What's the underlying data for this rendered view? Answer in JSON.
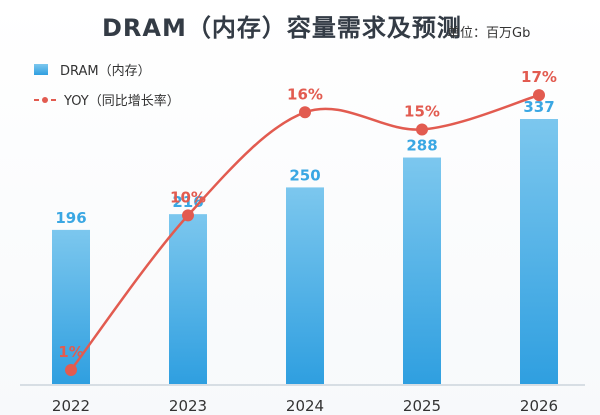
{
  "title": "DRAM（内存）容量需求及预测",
  "unit": "单位：百万Gb",
  "legend": {
    "bar": "DRAM（内存）",
    "line": "YOY（同比增长率）"
  },
  "colors": {
    "bar_top": "#7cc7ee",
    "bar_bottom": "#2f9fe0",
    "bar_label": "#3aa7e3",
    "line": "#e25b50",
    "axis_label": "#333333"
  },
  "chart_data": {
    "type": "bar",
    "title": "DRAM（内存）容量需求及预测",
    "categories": [
      "2022",
      "2023",
      "2024",
      "2025",
      "2026"
    ],
    "series": [
      {
        "name": "DRAM（内存）",
        "type": "bar",
        "values": [
          196,
          216,
          250,
          288,
          337
        ],
        "labels": [
          "196",
          "216",
          "250",
          "288",
          "337"
        ]
      },
      {
        "name": "YOY（同比增长率）",
        "type": "line",
        "values": [
          1,
          10,
          16,
          15,
          17
        ],
        "labels": [
          "1%",
          "10%",
          "16%",
          "15%",
          "17%"
        ]
      }
    ],
    "legend_position": "top-left"
  }
}
